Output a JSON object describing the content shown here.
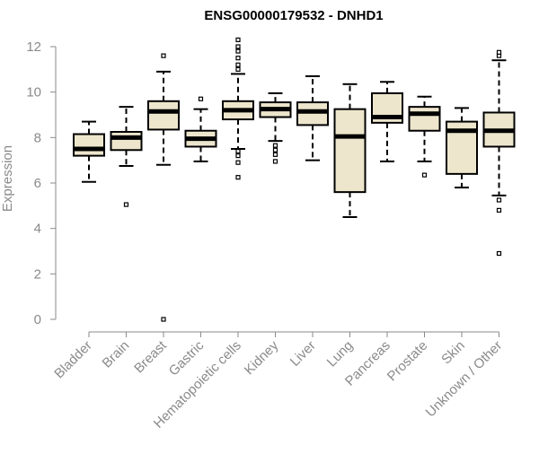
{
  "chart_data": {
    "type": "box",
    "title": "ENSG00000179532 - DNHD1",
    "xlabel": "",
    "ylabel": "Expression",
    "ylim": [
      0,
      12
    ],
    "yticks": [
      0,
      2,
      4,
      6,
      8,
      10,
      12
    ],
    "ytick_labels": [
      "0",
      "2",
      "4",
      "6",
      "8",
      "10",
      "12"
    ],
    "box_fill": "#ede6cd",
    "box_stroke": "#000000",
    "categories": [
      "Bladder",
      "Brain",
      "Breast",
      "Gastric",
      "Hematopoietic cells",
      "Kidney",
      "Liver",
      "Lung",
      "Pancreas",
      "Prostate",
      "Skin",
      "Unknown / Other"
    ],
    "boxes": [
      {
        "whisker_low": 6.05,
        "q1": 7.2,
        "median": 7.5,
        "q3": 8.15,
        "whisker_high": 8.7,
        "outliers": []
      },
      {
        "whisker_low": 6.75,
        "q1": 7.45,
        "median": 8.0,
        "q3": 8.25,
        "whisker_high": 9.35,
        "outliers": [
          5.05
        ]
      },
      {
        "whisker_low": 6.8,
        "q1": 8.35,
        "median": 9.15,
        "q3": 9.6,
        "whisker_high": 10.9,
        "outliers": [
          0.0,
          11.6
        ]
      },
      {
        "whisker_low": 6.95,
        "q1": 7.6,
        "median": 7.95,
        "q3": 8.3,
        "whisker_high": 9.25,
        "outliers": [
          9.7
        ]
      },
      {
        "whisker_low": 7.5,
        "q1": 8.8,
        "median": 9.2,
        "q3": 9.6,
        "whisker_high": 10.8,
        "outliers": [
          6.25,
          6.9,
          7.2,
          7.4,
          11.0,
          11.2,
          11.5,
          11.8,
          12.0,
          12.3
        ]
      },
      {
        "whisker_low": 7.85,
        "q1": 8.9,
        "median": 9.25,
        "q3": 9.55,
        "whisker_high": 9.95,
        "outliers": [
          6.95,
          7.25,
          7.45,
          7.65
        ]
      },
      {
        "whisker_low": 7.0,
        "q1": 8.55,
        "median": 9.15,
        "q3": 9.55,
        "whisker_high": 10.7,
        "outliers": []
      },
      {
        "whisker_low": 4.5,
        "q1": 5.6,
        "median": 8.05,
        "q3": 9.25,
        "whisker_high": 10.35,
        "outliers": []
      },
      {
        "whisker_low": 6.95,
        "q1": 8.65,
        "median": 8.9,
        "q3": 9.95,
        "whisker_high": 10.45,
        "outliers": []
      },
      {
        "whisker_low": 6.95,
        "q1": 8.3,
        "median": 9.05,
        "q3": 9.35,
        "whisker_high": 9.8,
        "outliers": [
          6.35
        ]
      },
      {
        "whisker_low": 5.8,
        "q1": 6.4,
        "median": 8.3,
        "q3": 8.7,
        "whisker_high": 9.3,
        "outliers": []
      },
      {
        "whisker_low": 5.45,
        "q1": 7.6,
        "median": 8.3,
        "q3": 9.1,
        "whisker_high": 11.4,
        "outliers": [
          2.9,
          4.8,
          5.25,
          11.6,
          11.75
        ]
      }
    ]
  }
}
